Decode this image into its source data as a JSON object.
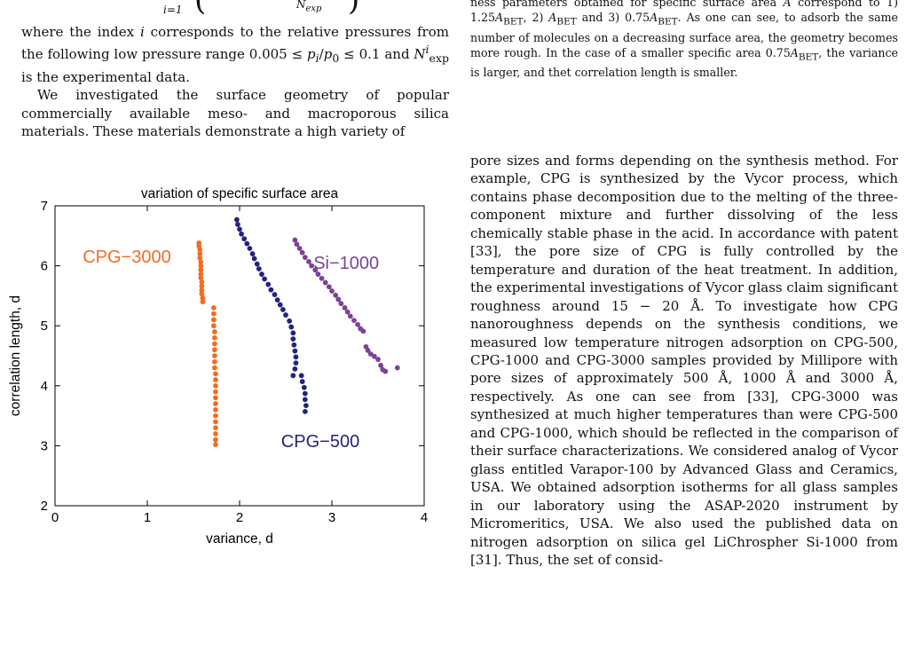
{
  "equation": {
    "sum_index": "i=1",
    "denominator": "N",
    "denominator_sub": "exp"
  },
  "left_text": {
    "p1": "where the index i corresponds to the relative pressures from the following low pressure range 0.005 ≤ p_i/p_0 ≤ 0.1 and N^i_exp is the experimental data.",
    "p2": "We investigated the surface geometry of popular commercially available meso- and macroporous silica materials.  These materials demonstrate a high variety of"
  },
  "caption": "ness parameters obtained for specific surface area A correspond to 1) 1.25A_BET, 2) A_BET and 3) 0.75A_BET. As one can see, to adsorb the same number of molecules on a decreasing surface area, the geometry becomes more rough. In the case of a smaller specific area 0.75A_BET, the variance is larger, and thet correlation length is smaller.",
  "right_text": "pore sizes and forms depending on the synthesis method. For example, CPG is synthesized by the Vycor process, which contains phase decomposition due to the melting of the three-component mixture and further dissolving of the less chemically stable phase in the acid.  In accordance with patent [33], the pore size of CPG is fully controlled by the temperature and duration of the heat treatment. In addition, the experimental investigations of Vycor glass claim significant roughness around 15 − 20 Å. To investigate how CPG nanoroughness depends on the synthesis conditions, we measured low temperature nitrogen adsorption on CPG-500, CPG-1000 and CPG-3000 samples provided by Millipore with pore sizes of approximately 500 Å, 1000 Å and 3000 Å, respectively. As one can see from [33], CPG-3000 was synthesized at much higher temperatures than were CPG-500 and CPG-1000, which should be reflected in the comparison of their surface characterizations. We considered analog of Vycor glass entitled Varapor-100 by Advanced Glass and Ceramics, USA. We obtained adsorption isotherms for all glass samples in our laboratory using the ASAP-2020 instrument by Micromeritics, USA. We also used the published data on nitrogen adsorption on silica gel LiChrospher Si-1000 from [31]. Thus, the set of consid-",
  "chart_data": {
    "type": "scatter",
    "title": "variation of specific surface area",
    "xlabel": "variance, d",
    "ylabel": "correlation length, d",
    "xlim": [
      0,
      4
    ],
    "ylim": [
      2,
      7
    ],
    "xticks": [
      "0",
      "1",
      "2",
      "3",
      "4"
    ],
    "yticks": [
      "2",
      "3",
      "4",
      "5",
      "6",
      "7"
    ],
    "grid": false,
    "legend": "inline labels",
    "series": [
      {
        "name": "CPG−3000",
        "color": "#f36c21",
        "label_at": [
          0.3,
          6.05
        ],
        "points": [
          [
            1.56,
            6.38
          ],
          [
            1.56,
            6.33
          ],
          [
            1.57,
            6.27
          ],
          [
            1.57,
            6.2
          ],
          [
            1.57,
            6.13
          ],
          [
            1.58,
            6.06
          ],
          [
            1.58,
            6.0
          ],
          [
            1.58,
            5.93
          ],
          [
            1.58,
            5.86
          ],
          [
            1.58,
            5.8
          ],
          [
            1.59,
            5.73
          ],
          [
            1.59,
            5.66
          ],
          [
            1.59,
            5.59
          ],
          [
            1.59,
            5.53
          ],
          [
            1.6,
            5.46
          ],
          [
            1.6,
            5.4
          ],
          [
            1.72,
            5.3
          ],
          [
            1.72,
            5.2
          ],
          [
            1.72,
            5.1
          ],
          [
            1.72,
            5.0
          ],
          [
            1.73,
            4.9
          ],
          [
            1.73,
            4.8
          ],
          [
            1.73,
            4.7
          ],
          [
            1.73,
            4.6
          ],
          [
            1.73,
            4.5
          ],
          [
            1.73,
            4.4
          ],
          [
            1.73,
            4.3
          ],
          [
            1.74,
            4.2
          ],
          [
            1.74,
            4.1
          ],
          [
            1.74,
            4.0
          ],
          [
            1.74,
            3.9
          ],
          [
            1.74,
            3.8
          ],
          [
            1.74,
            3.7
          ],
          [
            1.74,
            3.6
          ],
          [
            1.74,
            3.5
          ],
          [
            1.74,
            3.4
          ],
          [
            1.74,
            3.3
          ],
          [
            1.74,
            3.2
          ],
          [
            1.74,
            3.1
          ],
          [
            1.74,
            3.02
          ]
        ]
      },
      {
        "name": "CPG−500",
        "color": "#23237d",
        "label_at": [
          2.45,
          2.98
        ],
        "points": [
          [
            1.97,
            6.77
          ],
          [
            1.98,
            6.69
          ],
          [
            2.0,
            6.61
          ],
          [
            2.02,
            6.53
          ],
          [
            2.05,
            6.45
          ],
          [
            2.08,
            6.37
          ],
          [
            2.11,
            6.29
          ],
          [
            2.14,
            6.2
          ],
          [
            2.16,
            6.12
          ],
          [
            2.19,
            6.03
          ],
          [
            2.21,
            5.95
          ],
          [
            2.24,
            5.86
          ],
          [
            2.27,
            5.78
          ],
          [
            2.31,
            5.69
          ],
          [
            2.34,
            5.6
          ],
          [
            2.38,
            5.52
          ],
          [
            2.41,
            5.43
          ],
          [
            2.44,
            5.35
          ],
          [
            2.47,
            5.27
          ],
          [
            2.5,
            5.18
          ],
          [
            2.54,
            5.08
          ],
          [
            2.56,
            4.98
          ],
          [
            2.58,
            4.88
          ],
          [
            2.58,
            4.78
          ],
          [
            2.59,
            4.68
          ],
          [
            2.6,
            4.58
          ],
          [
            2.61,
            4.48
          ],
          [
            2.61,
            4.38
          ],
          [
            2.6,
            4.28
          ],
          [
            2.58,
            4.17
          ],
          [
            2.67,
            4.17
          ],
          [
            2.68,
            4.07
          ],
          [
            2.7,
            3.97
          ],
          [
            2.71,
            3.87
          ],
          [
            2.71,
            3.77
          ],
          [
            2.72,
            3.67
          ],
          [
            2.71,
            3.57
          ]
        ]
      },
      {
        "name": "Si−1000",
        "color": "#7b4297",
        "label_at": [
          2.8,
          5.95
        ],
        "points": [
          [
            2.6,
            6.43
          ],
          [
            2.62,
            6.36
          ],
          [
            2.65,
            6.29
          ],
          [
            2.68,
            6.22
          ],
          [
            2.71,
            6.14
          ],
          [
            2.75,
            6.07
          ],
          [
            2.78,
            6.0
          ],
          [
            2.82,
            5.93
          ],
          [
            2.85,
            5.86
          ],
          [
            2.89,
            5.79
          ],
          [
            2.93,
            5.72
          ],
          [
            2.97,
            5.65
          ],
          [
            3.0,
            5.58
          ],
          [
            3.04,
            5.51
          ],
          [
            3.07,
            5.44
          ],
          [
            3.1,
            5.37
          ],
          [
            3.14,
            5.3
          ],
          [
            3.17,
            5.23
          ],
          [
            3.2,
            5.16
          ],
          [
            3.24,
            5.09
          ],
          [
            3.28,
            5.02
          ],
          [
            3.31,
            4.95
          ],
          [
            3.34,
            4.91
          ],
          [
            3.37,
            4.65
          ],
          [
            3.39,
            4.59
          ],
          [
            3.42,
            4.53
          ],
          [
            3.46,
            4.49
          ],
          [
            3.5,
            4.44
          ],
          [
            3.53,
            4.34
          ],
          [
            3.55,
            4.27
          ],
          [
            3.58,
            4.24
          ],
          [
            3.71,
            4.3
          ]
        ]
      }
    ]
  }
}
